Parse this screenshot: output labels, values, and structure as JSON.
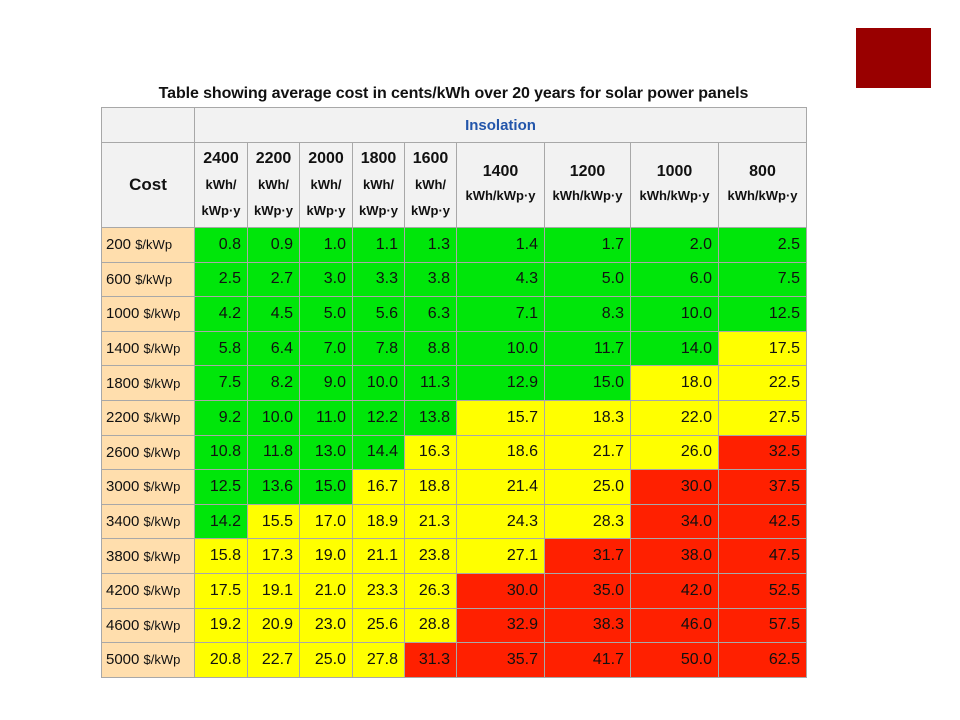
{
  "caption": "Table showing average cost in cents/kWh over 20 years for solar power panels",
  "header": {
    "group_label": "Insolation",
    "cost_label": "Cost",
    "columns": [
      {
        "value": "2400",
        "unit_line1": "kWh/",
        "unit_line2": "kWp·y"
      },
      {
        "value": "2200",
        "unit_line1": "kWh/",
        "unit_line2": "kWp·y"
      },
      {
        "value": "2000",
        "unit_line1": "kWh/",
        "unit_line2": "kWp·y"
      },
      {
        "value": "1800",
        "unit_line1": "kWh/",
        "unit_line2": "kWp·y"
      },
      {
        "value": "1600",
        "unit_line1": "kWh/",
        "unit_line2": "kWp·y"
      },
      {
        "value": "1400",
        "unit": "kWh/kWp·y"
      },
      {
        "value": "1200",
        "unit": "kWh/kWp·y"
      },
      {
        "value": "1000",
        "unit": "kWh/kWp·y"
      },
      {
        "value": "800",
        "unit": "kWh/kWp·y"
      }
    ]
  },
  "colors": {
    "green": "#00e60a",
    "yellow": "#ffff00",
    "red": "#ff2000",
    "row_header": "#ffdead",
    "corner_square": "#990000"
  },
  "rows": [
    {
      "cost": "200",
      "unit": "$/kWp",
      "values": [
        "0.8",
        "0.9",
        "1.0",
        "1.1",
        "1.3",
        "1.4",
        "1.7",
        "2.0",
        "2.5"
      ],
      "colors": [
        "green",
        "green",
        "green",
        "green",
        "green",
        "green",
        "green",
        "green",
        "green"
      ]
    },
    {
      "cost": "600",
      "unit": "$/kWp",
      "values": [
        "2.5",
        "2.7",
        "3.0",
        "3.3",
        "3.8",
        "4.3",
        "5.0",
        "6.0",
        "7.5"
      ],
      "colors": [
        "green",
        "green",
        "green",
        "green",
        "green",
        "green",
        "green",
        "green",
        "green"
      ]
    },
    {
      "cost": "1000",
      "unit": "$/kWp",
      "values": [
        "4.2",
        "4.5",
        "5.0",
        "5.6",
        "6.3",
        "7.1",
        "8.3",
        "10.0",
        "12.5"
      ],
      "colors": [
        "green",
        "green",
        "green",
        "green",
        "green",
        "green",
        "green",
        "green",
        "green"
      ]
    },
    {
      "cost": "1400",
      "unit": "$/kWp",
      "values": [
        "5.8",
        "6.4",
        "7.0",
        "7.8",
        "8.8",
        "10.0",
        "11.7",
        "14.0",
        "17.5"
      ],
      "colors": [
        "green",
        "green",
        "green",
        "green",
        "green",
        "green",
        "green",
        "green",
        "yellow"
      ]
    },
    {
      "cost": "1800",
      "unit": "$/kWp",
      "values": [
        "7.5",
        "8.2",
        "9.0",
        "10.0",
        "11.3",
        "12.9",
        "15.0",
        "18.0",
        "22.5"
      ],
      "colors": [
        "green",
        "green",
        "green",
        "green",
        "green",
        "green",
        "green",
        "yellow",
        "yellow"
      ]
    },
    {
      "cost": "2200",
      "unit": "$/kWp",
      "values": [
        "9.2",
        "10.0",
        "11.0",
        "12.2",
        "13.8",
        "15.7",
        "18.3",
        "22.0",
        "27.5"
      ],
      "colors": [
        "green",
        "green",
        "green",
        "green",
        "green",
        "yellow",
        "yellow",
        "yellow",
        "yellow"
      ]
    },
    {
      "cost": "2600",
      "unit": "$/kWp",
      "values": [
        "10.8",
        "11.8",
        "13.0",
        "14.4",
        "16.3",
        "18.6",
        "21.7",
        "26.0",
        "32.5"
      ],
      "colors": [
        "green",
        "green",
        "green",
        "green",
        "yellow",
        "yellow",
        "yellow",
        "yellow",
        "red"
      ]
    },
    {
      "cost": "3000",
      "unit": "$/kWp",
      "values": [
        "12.5",
        "13.6",
        "15.0",
        "16.7",
        "18.8",
        "21.4",
        "25.0",
        "30.0",
        "37.5"
      ],
      "colors": [
        "green",
        "green",
        "green",
        "yellow",
        "yellow",
        "yellow",
        "yellow",
        "red",
        "red"
      ]
    },
    {
      "cost": "3400",
      "unit": "$/kWp",
      "values": [
        "14.2",
        "15.5",
        "17.0",
        "18.9",
        "21.3",
        "24.3",
        "28.3",
        "34.0",
        "42.5"
      ],
      "colors": [
        "green",
        "yellow",
        "yellow",
        "yellow",
        "yellow",
        "yellow",
        "yellow",
        "red",
        "red"
      ]
    },
    {
      "cost": "3800",
      "unit": "$/kWp",
      "values": [
        "15.8",
        "17.3",
        "19.0",
        "21.1",
        "23.8",
        "27.1",
        "31.7",
        "38.0",
        "47.5"
      ],
      "colors": [
        "yellow",
        "yellow",
        "yellow",
        "yellow",
        "yellow",
        "yellow",
        "red",
        "red",
        "red"
      ]
    },
    {
      "cost": "4200",
      "unit": "$/kWp",
      "values": [
        "17.5",
        "19.1",
        "21.0",
        "23.3",
        "26.3",
        "30.0",
        "35.0",
        "42.0",
        "52.5"
      ],
      "colors": [
        "yellow",
        "yellow",
        "yellow",
        "yellow",
        "yellow",
        "red",
        "red",
        "red",
        "red"
      ]
    },
    {
      "cost": "4600",
      "unit": "$/kWp",
      "values": [
        "19.2",
        "20.9",
        "23.0",
        "25.6",
        "28.8",
        "32.9",
        "38.3",
        "46.0",
        "57.5"
      ],
      "colors": [
        "yellow",
        "yellow",
        "yellow",
        "yellow",
        "yellow",
        "red",
        "red",
        "red",
        "red"
      ]
    },
    {
      "cost": "5000",
      "unit": "$/kWp",
      "values": [
        "20.8",
        "22.7",
        "25.0",
        "27.8",
        "31.3",
        "35.7",
        "41.7",
        "50.0",
        "62.5"
      ],
      "colors": [
        "yellow",
        "yellow",
        "yellow",
        "yellow",
        "red",
        "red",
        "red",
        "red",
        "red"
      ]
    }
  ]
}
